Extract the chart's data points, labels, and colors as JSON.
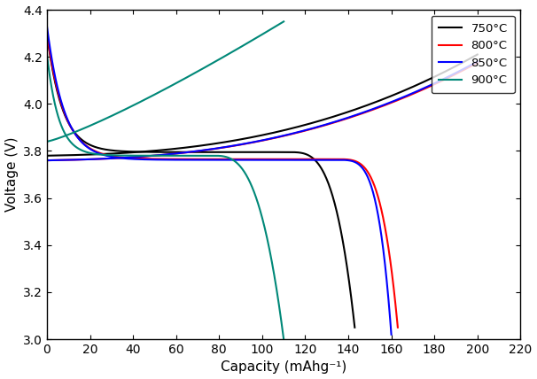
{
  "xlabel": "Capacity (mAhg⁻¹)",
  "ylabel": "Voltage (V)",
  "xlim": [
    0,
    220
  ],
  "ylim": [
    3.0,
    4.4
  ],
  "xticks": [
    0,
    20,
    40,
    60,
    80,
    100,
    120,
    140,
    160,
    180,
    200,
    220
  ],
  "yticks": [
    3.0,
    3.2,
    3.4,
    3.6,
    3.8,
    4.0,
    4.2,
    4.4
  ],
  "colors": [
    "black",
    "red",
    "blue",
    "#008878"
  ],
  "legend_labels": [
    "750°C",
    "800°C",
    "850°C",
    "900°C"
  ],
  "linewidth": 1.5,
  "curve_params": [
    {
      "temp": "750",
      "dch_cap": 143,
      "dch_v0": 4.3,
      "dch_vflat": 3.795,
      "dch_vc": 3.05,
      "dch_drop_start": 0.78,
      "dch_steepness": 3.5,
      "chg_cap": 200,
      "chg_v0": 3.78,
      "chg_v1": 4.21,
      "chg_alpha": 2.5,
      "chg_beta": 0.08
    },
    {
      "temp": "800",
      "dch_cap": 163,
      "dch_v0": 4.3,
      "dch_vflat": 3.765,
      "dch_vc": 3.05,
      "dch_drop_start": 0.82,
      "dch_steepness": 4.0,
      "chg_cap": 200,
      "chg_v0": 3.76,
      "chg_v1": 4.175,
      "chg_alpha": 2.5,
      "chg_beta": 0.08
    },
    {
      "temp": "850",
      "dch_cap": 160,
      "dch_v0": 4.33,
      "dch_vflat": 3.762,
      "dch_vc": 3.02,
      "dch_drop_start": 0.83,
      "dch_steepness": 4.5,
      "chg_cap": 200,
      "chg_v0": 3.76,
      "chg_v1": 4.18,
      "chg_alpha": 2.5,
      "chg_beta": 0.08
    },
    {
      "temp": "900",
      "dch_cap": 110,
      "dch_v0": 4.21,
      "dch_vflat": 3.78,
      "dch_vc": 3.0,
      "dch_drop_start": 0.7,
      "dch_steepness": 3.0,
      "chg_cap": 110,
      "chg_v0": 3.84,
      "chg_v1": 4.35,
      "chg_alpha": 1.2,
      "chg_beta": 0.05
    }
  ]
}
